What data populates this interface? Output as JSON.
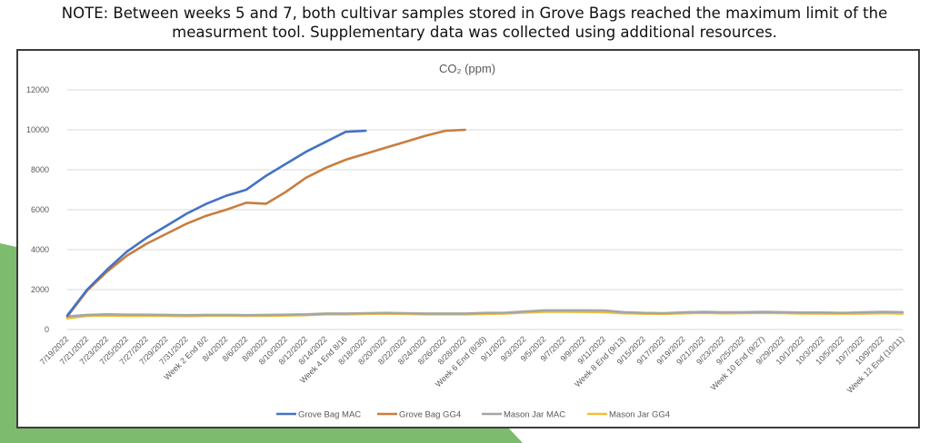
{
  "note": {
    "line1": "NOTE: Between weeks 5 and 7, both cultivar samples stored in Grove Bags reached the maximum limit of the",
    "line2": "measurment tool. Supplementary data was collected using additional resources."
  },
  "colors": {
    "background_shape": "#7dbb6e",
    "frame_border": "#3d3d3d",
    "grid": "#d9d9d9",
    "text": "#595959"
  },
  "chart_data": {
    "type": "line",
    "title": "CO₂ (ppm)",
    "xlabel": "",
    "ylabel": "",
    "ylim": [
      0,
      12000
    ],
    "yticks": [
      0,
      2000,
      4000,
      6000,
      8000,
      10000,
      12000
    ],
    "grid": "horizontal",
    "legend_position": "bottom",
    "x_tick_labels": [
      "7/19/2022",
      "7/21/2022",
      "7/23/2022",
      "7/25/2022",
      "7/27/2022",
      "7/29/2022",
      "7/31/2022",
      "Week 2 End 8/2",
      "8/4/2022",
      "8/6/2022",
      "8/8/2022",
      "8/10/2022",
      "8/12/2022",
      "8/14/2022",
      "Week 4 End 8/16",
      "8/18/2022",
      "8/20/2022",
      "8/22/2022",
      "8/24/2022",
      "8/26/2022",
      "8/28/2022",
      "Week 6 End (8/30)",
      "9/1/2022",
      "9/3/2022",
      "9/5/2022",
      "9/7/2022",
      "9/9/2022",
      "9/11/2022",
      "Week 8 End (9/13)",
      "9/15/2022",
      "9/17/2022",
      "9/19/2022",
      "9/21/2022",
      "9/23/2022",
      "9/25/2022",
      "Week 10 End (9/27)",
      "9/29/2022",
      "10/1/2022",
      "10/3/2022",
      "10/5/2022",
      "10/7/2022",
      "10/9/2022",
      "Week 12 End (10/11)"
    ],
    "series": [
      {
        "name": "Grove Bag MAC",
        "color": "#4472c4",
        "values": [
          700,
          2000,
          3000,
          3900,
          4600,
          5200,
          5800,
          6300,
          6700,
          7000,
          7700,
          8300,
          8900,
          9400,
          9900,
          9950
        ]
      },
      {
        "name": "Grove Bag GG4",
        "color": "#c97d3f",
        "values": [
          650,
          1950,
          2900,
          3700,
          4300,
          4800,
          5300,
          5700,
          6000,
          6350,
          6300,
          6900,
          7600,
          8100,
          8500,
          8800,
          9100,
          9400,
          9700,
          9950,
          10000
        ]
      },
      {
        "name": "Mason Jar MAC",
        "color": "#a5a5a5",
        "values": [
          650,
          730,
          760,
          740,
          740,
          730,
          720,
          730,
          730,
          720,
          730,
          740,
          760,
          800,
          800,
          820,
          830,
          820,
          800,
          800,
          800,
          830,
          840,
          900,
          960,
          960,
          960,
          950,
          870,
          830,
          820,
          860,
          880,
          860,
          870,
          880,
          870,
          850,
          850,
          830,
          860,
          880,
          870
        ]
      },
      {
        "name": "Mason Jar GG4",
        "color": "#f2c037",
        "values": [
          560,
          680,
          700,
          680,
          690,
          680,
          670,
          690,
          690,
          680,
          690,
          700,
          720,
          760,
          760,
          780,
          790,
          780,
          760,
          760,
          760,
          780,
          800,
          850,
          890,
          890,
          880,
          870,
          810,
          790,
          780,
          810,
          830,
          810,
          820,
          830,
          820,
          800,
          800,
          790,
          800,
          810,
          800
        ]
      }
    ]
  }
}
